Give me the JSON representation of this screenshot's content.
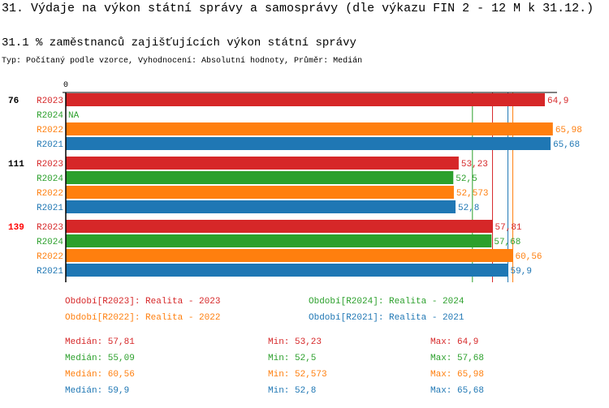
{
  "header": {
    "title": "31. Výdaje na výkon státní správy a samosprávy (dle výkazu FIN 2 - 12 M k 31.12.)",
    "subtitle": "31.1 % zaměstnanců zajišťujících výkon státní správy",
    "info": "Typ: Počítaný podle vzorce, Vyhodnocení: Absolutní hodnoty, Průměr: Medián"
  },
  "colors": {
    "R2023": "#d62728",
    "R2024": "#2ca02c",
    "R2022": "#ff7f0e",
    "R2021": "#1f77b4",
    "highlight": "#ff0000"
  },
  "chart_data": {
    "type": "bar",
    "orientation": "horizontal",
    "x_tick_labels": [
      "0"
    ],
    "xlim": [
      0,
      66
    ],
    "series_order": [
      "R2023",
      "R2024",
      "R2022",
      "R2021"
    ],
    "groups": [
      {
        "label": "76",
        "highlight": false,
        "values": [
          {
            "series": "R2023",
            "value": 64.9,
            "label": "64,9"
          },
          {
            "series": "R2024",
            "value": null,
            "label": "NA"
          },
          {
            "series": "R2022",
            "value": 65.98,
            "label": "65,98"
          },
          {
            "series": "R2021",
            "value": 65.68,
            "label": "65,68"
          }
        ]
      },
      {
        "label": "111",
        "highlight": false,
        "values": [
          {
            "series": "R2023",
            "value": 53.23,
            "label": "53,23"
          },
          {
            "series": "R2024",
            "value": 52.5,
            "label": "52,5"
          },
          {
            "series": "R2022",
            "value": 52.573,
            "label": "52,573"
          },
          {
            "series": "R2021",
            "value": 52.8,
            "label": "52,8"
          }
        ]
      },
      {
        "label": "139",
        "highlight": true,
        "values": [
          {
            "series": "R2023",
            "value": 57.81,
            "label": "57,81"
          },
          {
            "series": "R2024",
            "value": 57.68,
            "label": "57,68"
          },
          {
            "series": "R2022",
            "value": 60.56,
            "label": "60,56"
          },
          {
            "series": "R2021",
            "value": 59.9,
            "label": "59,9"
          }
        ]
      }
    ],
    "median_lines": [
      {
        "series": "R2024",
        "value": 55.09
      },
      {
        "series": "R2023",
        "value": 57.81
      },
      {
        "series": "R2021",
        "value": 59.9
      },
      {
        "series": "R2022",
        "value": 60.56
      }
    ]
  },
  "legend": [
    {
      "series": "R2023",
      "text": "Období[R2023]: Realita - 2023"
    },
    {
      "series": "R2024",
      "text": "Období[R2024]: Realita - 2024"
    },
    {
      "series": "R2022",
      "text": "Období[R2022]: Realita - 2022"
    },
    {
      "series": "R2021",
      "text": "Období[R2021]: Realita - 2021"
    }
  ],
  "stats": [
    {
      "series": "R2023",
      "median": "Medián: 57,81",
      "min": "Min: 53,23",
      "max": "Max: 64,9"
    },
    {
      "series": "R2024",
      "median": "Medián: 55,09",
      "min": "Min: 52,5",
      "max": "Max: 57,68"
    },
    {
      "series": "R2022",
      "median": "Medián: 60,56",
      "min": "Min: 52,573",
      "max": "Max: 65,98"
    },
    {
      "series": "R2021",
      "median": "Medián: 59,9",
      "min": "Min: 52,8",
      "max": "Max: 65,68"
    }
  ]
}
